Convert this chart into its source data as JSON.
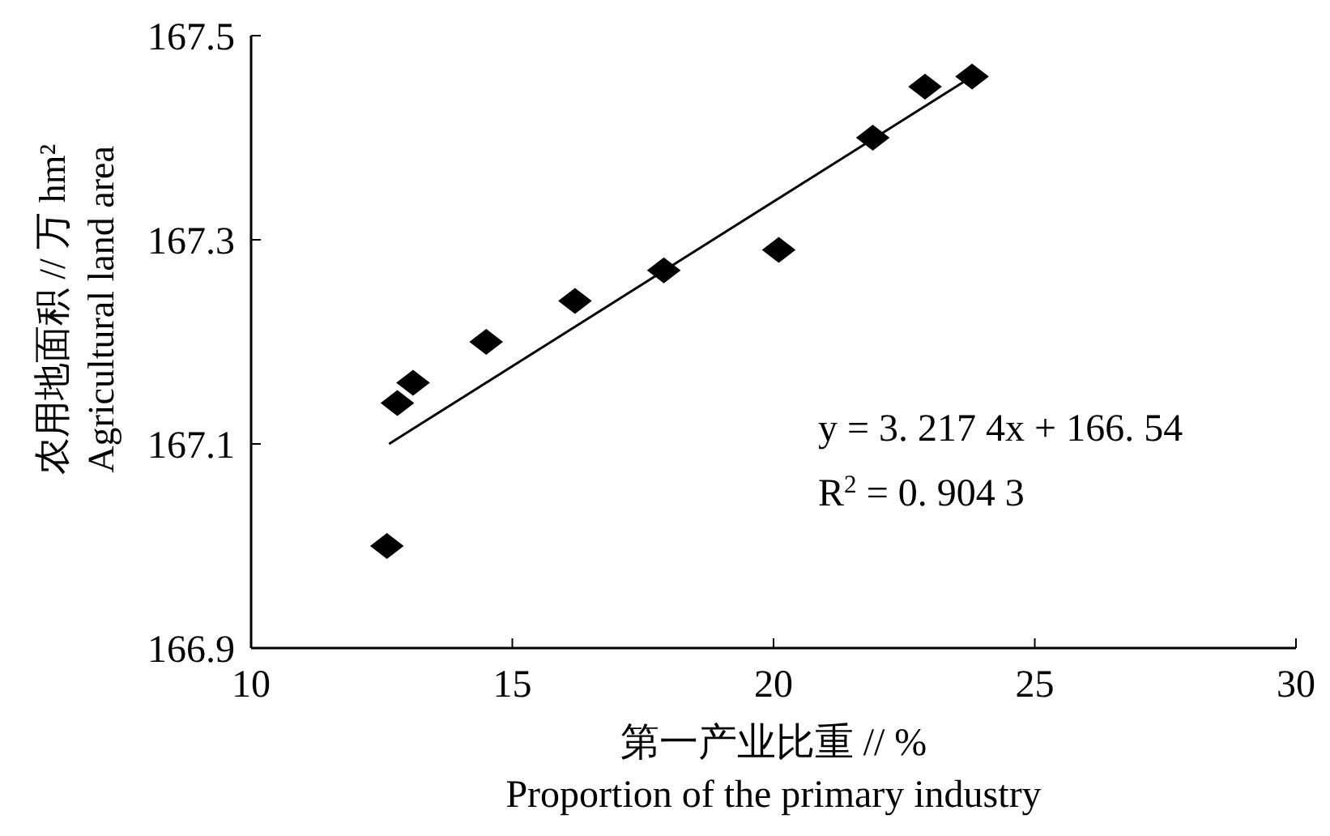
{
  "chart_data": {
    "type": "scatter",
    "xlabel": "第一产业比重 // %\nProportion of the primary industry",
    "ylabel": "农用地面积 // 万 hm²\nAgricultural land area",
    "xlim": [
      10,
      30
    ],
    "xticks": [
      10,
      15,
      20,
      25,
      30
    ],
    "ylim": [
      166.9,
      167.5
    ],
    "yticks": [
      166.9,
      167.1,
      167.3,
      167.5
    ],
    "grid": false,
    "marker": "diamond",
    "series": [
      {
        "color": "#000000",
        "x": [
          12.6,
          12.8,
          13.1,
          14.5,
          16.2,
          17.9,
          20.1,
          21.9,
          22.9,
          23.8
        ],
        "values": [
          167.0,
          167.14,
          167.16,
          167.2,
          167.24,
          167.27,
          167.29,
          167.4,
          167.45,
          167.46
        ]
      },
      {
        "type": "line",
        "color": "#000000",
        "marker": "none",
        "line_style": "solid",
        "x": [
          12.64,
          23.8
        ],
        "values": [
          167.1,
          167.46
        ]
      }
    ],
    "annotations": [
      "y = 3. 217 4x + 166. 54",
      "R$^{2}$ = 0. 904 3"
    ]
  }
}
